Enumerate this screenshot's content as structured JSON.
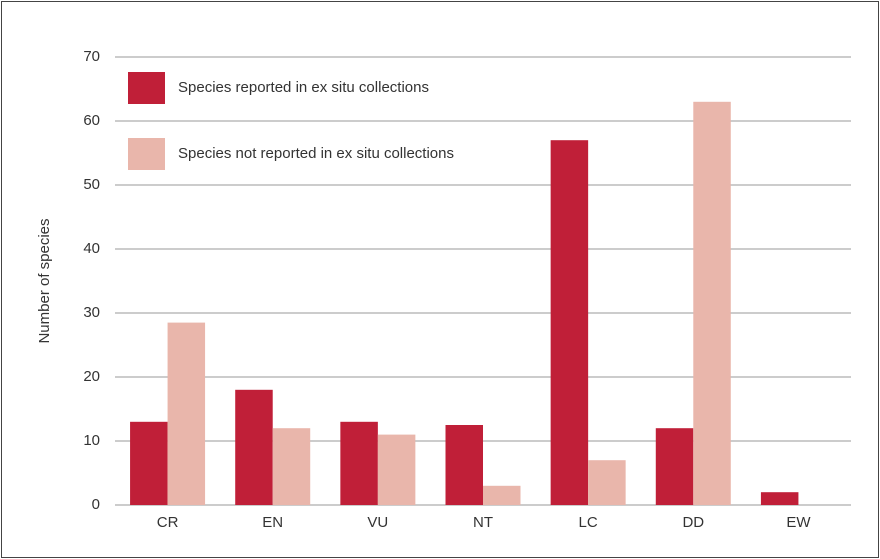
{
  "chart_data": {
    "type": "bar",
    "y_label": "Number of species",
    "categories": [
      "CR",
      "EN",
      "VU",
      "NT",
      "LC",
      "DD",
      "EW"
    ],
    "series": [
      {
        "name": "Species reported in ex situ collections",
        "color": "#c01f38",
        "values": [
          13,
          18,
          13,
          12.5,
          57,
          12,
          2
        ]
      },
      {
        "name": "Species not reported in ex situ collections",
        "color": "#e9b6ab",
        "values": [
          28.5,
          12,
          11,
          3,
          7,
          63,
          0
        ]
      }
    ],
    "ylim": [
      0,
      70
    ],
    "yticks": [
      0,
      10,
      20,
      30,
      40,
      50,
      60,
      70
    ],
    "grid": true,
    "legend": "top-left"
  }
}
